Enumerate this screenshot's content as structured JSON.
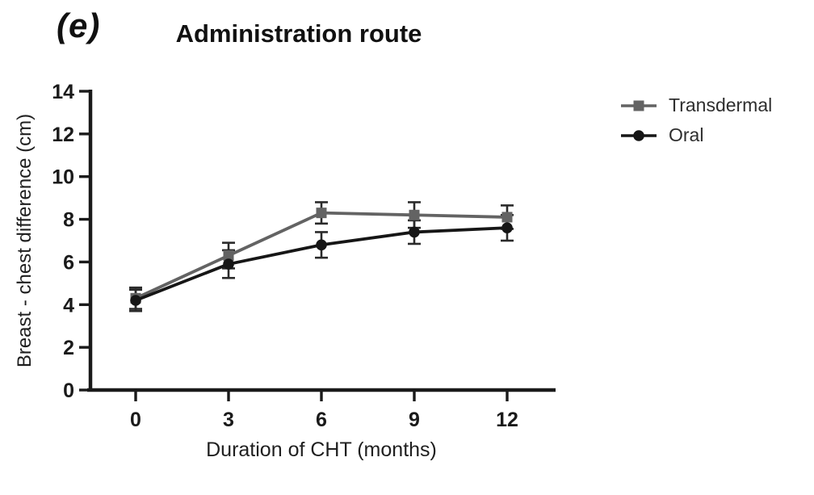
{
  "panel_label": "(e)",
  "title": "Administration route",
  "legend": {
    "items": [
      {
        "label": "Transdermal",
        "marker": "square",
        "color": "#636363"
      },
      {
        "label": "Oral",
        "marker": "circle",
        "color": "#161616"
      }
    ]
  },
  "chart_data": {
    "type": "line",
    "title": "Administration route",
    "xlabel": "Duration of CHT (months)",
    "ylabel": "Breast - chest difference (cm)",
    "x": [
      0,
      3,
      6,
      9,
      12
    ],
    "xticks": [
      "0",
      "3",
      "6",
      "9",
      "12"
    ],
    "yticks": [
      "0",
      "2",
      "4",
      "6",
      "8",
      "10",
      "12",
      "14"
    ],
    "xlim": [
      -1.6,
      13.6
    ],
    "ylim": [
      0,
      14
    ],
    "grid": false,
    "legend_position": "right-outside",
    "axis_color": "#1a1a1a",
    "error_bar_color": "#2a2a2a",
    "series": [
      {
        "name": "Transdermal",
        "marker": "square",
        "color": "#636363",
        "values": [
          4.3,
          6.3,
          8.3,
          8.2,
          8.1
        ],
        "errors": [
          0.5,
          0.6,
          0.5,
          0.6,
          0.55
        ]
      },
      {
        "name": "Oral",
        "marker": "circle",
        "color": "#161616",
        "values": [
          4.2,
          5.9,
          6.8,
          7.4,
          7.6
        ],
        "errors": [
          0.5,
          0.65,
          0.6,
          0.55,
          0.6
        ]
      }
    ]
  }
}
